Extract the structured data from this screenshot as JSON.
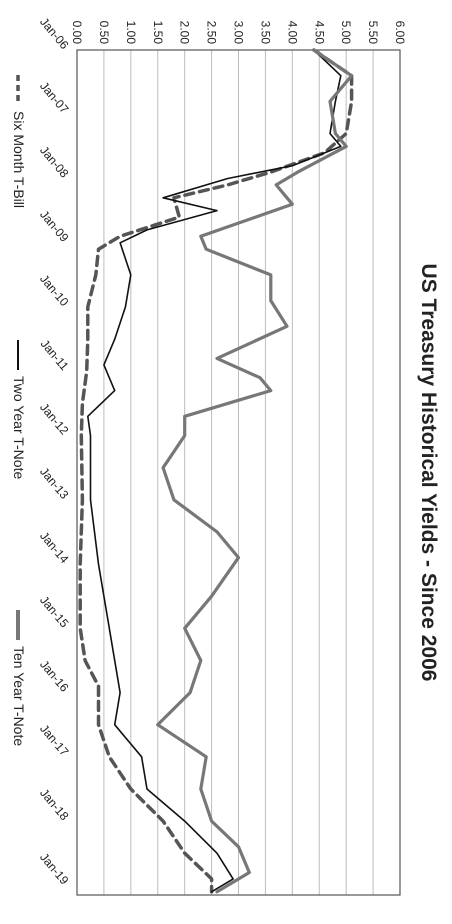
{
  "chart_data": {
    "type": "line",
    "title": "US Treasury Historical Yields - Since 2006",
    "xlabel": "",
    "ylabel": "",
    "ylim": [
      0,
      6
    ],
    "ytick_labels": [
      "6.00",
      "5.50",
      "5.00",
      "4.50",
      "4.00",
      "3.50",
      "3.00",
      "2.50",
      "2.00",
      "1.50",
      "1.00",
      "0.50",
      "0.00"
    ],
    "xtick_labels": [
      "Jan-06",
      "Jan-07",
      "Jan-08",
      "Jan-09",
      "Jan-10",
      "Jan-11",
      "Jan-12",
      "Jan-13",
      "Jan-14",
      "Jan-15",
      "Jan-16",
      "Jan-17",
      "Jan-18",
      "Jan-19"
    ],
    "grid": true,
    "legend_position": "bottom",
    "series": [
      {
        "name": "Six Month T-Bill",
        "style": "dashed",
        "color": "#555555",
        "x": [
          2006.0,
          2006.4,
          2006.8,
          2007.3,
          2007.6,
          2007.9,
          2008.1,
          2008.3,
          2008.6,
          2008.9,
          2009.1,
          2009.5,
          2010.0,
          2010.5,
          2011.0,
          2011.5,
          2012.0,
          2013.0,
          2014.0,
          2015.0,
          2015.5,
          2015.9,
          2016.5,
          2017.0,
          2017.5,
          2018.0,
          2018.5,
          2018.9,
          2019.1
        ],
        "y": [
          4.4,
          5.1,
          5.1,
          5.0,
          4.6,
          3.6,
          2.8,
          1.8,
          1.9,
          0.8,
          0.4,
          0.35,
          0.2,
          0.2,
          0.18,
          0.1,
          0.08,
          0.1,
          0.06,
          0.06,
          0.15,
          0.4,
          0.4,
          0.6,
          1.0,
          1.6,
          2.0,
          2.5,
          2.5
        ]
      },
      {
        "name": "Two Year T-Note",
        "style": "solid",
        "color": "#111111",
        "x": [
          2006.0,
          2006.4,
          2006.8,
          2007.3,
          2007.5,
          2007.8,
          2008.0,
          2008.3,
          2008.5,
          2008.8,
          2009.0,
          2009.5,
          2010.0,
          2010.5,
          2010.9,
          2011.3,
          2011.7,
          2012.0,
          2013.0,
          2014.0,
          2015.0,
          2015.5,
          2016.0,
          2016.5,
          2017.0,
          2017.5,
          2018.0,
          2018.5,
          2018.9,
          2019.1
        ],
        "y": [
          4.4,
          4.9,
          4.8,
          4.7,
          4.9,
          4.0,
          2.8,
          1.6,
          2.6,
          1.3,
          0.8,
          1.0,
          0.9,
          0.7,
          0.5,
          0.7,
          0.2,
          0.25,
          0.25,
          0.4,
          0.6,
          0.7,
          0.8,
          0.7,
          1.2,
          1.3,
          2.0,
          2.6,
          2.9,
          2.5
        ]
      },
      {
        "name": "Ten Year T-Note",
        "style": "solid-thick",
        "color": "#777777",
        "x": [
          2006.0,
          2006.4,
          2006.8,
          2007.3,
          2007.5,
          2007.9,
          2008.1,
          2008.4,
          2008.9,
          2009.1,
          2009.5,
          2009.9,
          2010.3,
          2010.8,
          2011.1,
          2011.3,
          2011.7,
          2012.0,
          2012.5,
          2013.0,
          2013.5,
          2013.9,
          2014.5,
          2015.0,
          2015.5,
          2016.0,
          2016.5,
          2017.0,
          2017.5,
          2018.0,
          2018.4,
          2018.8,
          2019.1
        ],
        "y": [
          4.4,
          5.1,
          4.7,
          4.8,
          5.0,
          4.1,
          3.7,
          4.0,
          2.3,
          2.4,
          3.6,
          3.6,
          3.9,
          2.6,
          3.4,
          3.6,
          2.0,
          2.0,
          1.6,
          1.8,
          2.6,
          3.0,
          2.5,
          2.0,
          2.3,
          2.1,
          1.5,
          2.4,
          2.3,
          2.5,
          3.0,
          3.2,
          2.6
        ]
      }
    ]
  }
}
